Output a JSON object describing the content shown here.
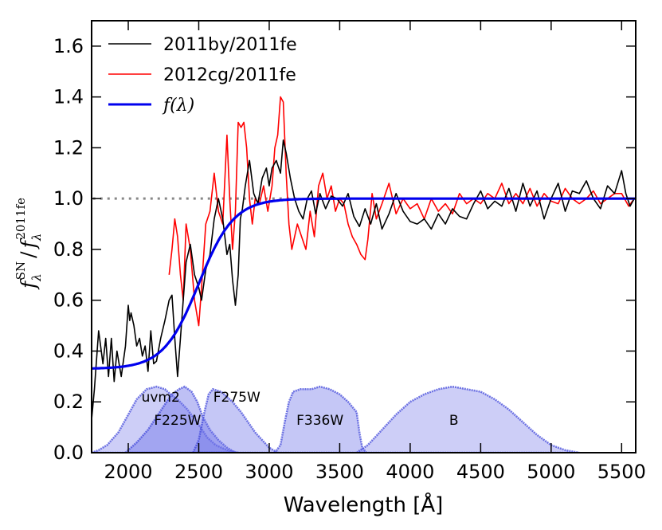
{
  "chart_data": {
    "type": "line",
    "xlabel": "Wavelength [Å]",
    "ylabel": "f_λ^SN / f_λ^2011fe",
    "ylabel_parts": {
      "base": "f",
      "sub": "λ",
      "sup1": "SN",
      "slash": "/",
      "sup2": "2011fe"
    },
    "xlim": [
      1740,
      5600
    ],
    "ylim": [
      0.0,
      1.7
    ],
    "xticks": [
      "2000",
      "2500",
      "3000",
      "3500",
      "4000",
      "4500",
      "5000",
      "5500"
    ],
    "xtick_values": [
      2000,
      2500,
      3000,
      3500,
      4000,
      4500,
      5000,
      5500
    ],
    "yticks": [
      "0.0",
      "0.2",
      "0.4",
      "0.6",
      "0.8",
      "1.0",
      "1.2",
      "1.4",
      "1.6"
    ],
    "ytick_values": [
      0.0,
      0.2,
      0.4,
      0.6,
      0.8,
      1.0,
      1.2,
      1.4,
      1.6
    ],
    "reference_line": {
      "y": 1.0,
      "x_range": [
        1750,
        3200
      ],
      "style": "dotted",
      "color": "#888888"
    },
    "legend": {
      "placement": "top-left",
      "entries": [
        {
          "label": "2011by/2011fe",
          "color": "#000000"
        },
        {
          "label": "2012cg/2011fe",
          "color": "#ff0000"
        },
        {
          "label": "f(λ)",
          "color": "#0000ee",
          "math": true
        }
      ]
    },
    "series": [
      {
        "name": "2011by/2011fe",
        "color": "#000000",
        "x": [
          1740,
          1760,
          1790,
          1820,
          1840,
          1860,
          1880,
          1900,
          1920,
          1950,
          1980,
          2000,
          2010,
          2020,
          2040,
          2060,
          2080,
          2100,
          2120,
          2140,
          2160,
          2180,
          2200,
          2230,
          2260,
          2290,
          2310,
          2330,
          2350,
          2370,
          2390,
          2410,
          2440,
          2470,
          2500,
          2520,
          2550,
          2580,
          2610,
          2640,
          2670,
          2700,
          2720,
          2740,
          2760,
          2780,
          2795,
          2810,
          2830,
          2860,
          2890,
          2920,
          2950,
          2980,
          3000,
          3020,
          3050,
          3080,
          3100,
          3120,
          3150,
          3180,
          3210,
          3240,
          3270,
          3300,
          3330,
          3360,
          3400,
          3440,
          3480,
          3520,
          3560,
          3600,
          3640,
          3680,
          3720,
          3760,
          3800,
          3850,
          3900,
          3950,
          4000,
          4050,
          4100,
          4150,
          4200,
          4250,
          4300,
          4350,
          4400,
          4450,
          4500,
          4550,
          4600,
          4650,
          4700,
          4750,
          4800,
          4850,
          4900,
          4950,
          5000,
          5050,
          5100,
          5150,
          5200,
          5250,
          5300,
          5350,
          5400,
          5450,
          5500,
          5530,
          5560,
          5590
        ],
        "y": [
          0.13,
          0.25,
          0.48,
          0.35,
          0.45,
          0.3,
          0.45,
          0.28,
          0.4,
          0.3,
          0.42,
          0.58,
          0.52,
          0.55,
          0.5,
          0.42,
          0.45,
          0.38,
          0.42,
          0.32,
          0.48,
          0.35,
          0.36,
          0.45,
          0.52,
          0.6,
          0.62,
          0.45,
          0.3,
          0.45,
          0.6,
          0.75,
          0.82,
          0.7,
          0.65,
          0.6,
          0.72,
          0.78,
          0.92,
          1.0,
          0.92,
          0.78,
          0.82,
          0.68,
          0.58,
          0.7,
          0.92,
          0.96,
          1.05,
          1.15,
          1.02,
          0.98,
          1.08,
          1.12,
          1.05,
          1.12,
          1.15,
          1.1,
          1.23,
          1.18,
          1.08,
          1.0,
          0.95,
          0.92,
          1.0,
          1.03,
          0.94,
          1.02,
          0.96,
          1.01,
          1.0,
          0.97,
          1.02,
          0.93,
          0.89,
          0.96,
          0.9,
          0.98,
          0.88,
          0.94,
          1.02,
          0.95,
          0.91,
          0.9,
          0.92,
          0.88,
          0.94,
          0.9,
          0.96,
          0.93,
          0.92,
          0.98,
          1.03,
          0.96,
          0.99,
          0.97,
          1.04,
          0.95,
          1.06,
          0.97,
          1.03,
          0.92,
          1.0,
          1.06,
          0.95,
          1.03,
          1.02,
          1.07,
          1.0,
          0.96,
          1.05,
          1.02,
          1.11,
          1.02,
          0.97,
          1.0
        ]
      },
      {
        "name": "2012cg/2011fe",
        "color": "#ff0000",
        "x": [
          2290,
          2310,
          2330,
          2350,
          2370,
          2390,
          2410,
          2440,
          2470,
          2500,
          2520,
          2550,
          2580,
          2610,
          2640,
          2670,
          2700,
          2720,
          2740,
          2760,
          2780,
          2800,
          2820,
          2840,
          2860,
          2880,
          2900,
          2930,
          2960,
          2990,
          3020,
          3040,
          3060,
          3080,
          3100,
          3120,
          3140,
          3160,
          3180,
          3200,
          3230,
          3260,
          3290,
          3320,
          3350,
          3380,
          3410,
          3440,
          3470,
          3500,
          3530,
          3560,
          3590,
          3620,
          3650,
          3680,
          3700,
          3730,
          3760,
          3800,
          3850,
          3900,
          3950,
          4000,
          4050,
          4100,
          4150,
          4200,
          4250,
          4300,
          4350,
          4400,
          4450,
          4500,
          4550,
          4600,
          4650,
          4700,
          4750,
          4800,
          4850,
          4900,
          4950,
          5000,
          5050,
          5100,
          5150,
          5200,
          5250,
          5300,
          5350,
          5400,
          5450,
          5500,
          5550,
          5590
        ],
        "y": [
          0.7,
          0.8,
          0.92,
          0.85,
          0.7,
          0.6,
          0.9,
          0.8,
          0.6,
          0.5,
          0.65,
          0.9,
          0.95,
          1.1,
          0.95,
          0.9,
          1.25,
          1.0,
          0.8,
          0.95,
          1.3,
          1.28,
          1.3,
          1.2,
          1.0,
          0.9,
          1.0,
          0.98,
          1.05,
          0.95,
          1.05,
          1.2,
          1.25,
          1.4,
          1.38,
          1.1,
          0.9,
          0.8,
          0.85,
          0.9,
          0.85,
          0.8,
          0.95,
          0.85,
          1.05,
          1.1,
          1.0,
          1.05,
          0.95,
          1.0,
          0.98,
          0.9,
          0.85,
          0.82,
          0.78,
          0.76,
          0.84,
          1.02,
          0.92,
          0.98,
          1.06,
          0.94,
          1.0,
          0.96,
          0.98,
          0.92,
          1.0,
          0.95,
          0.98,
          0.94,
          1.02,
          0.98,
          1.0,
          0.98,
          1.02,
          1.0,
          1.06,
          0.98,
          1.02,
          0.98,
          1.04,
          0.97,
          1.02,
          0.99,
          0.98,
          1.04,
          1.0,
          0.98,
          1.0,
          1.03,
          0.98,
          1.0,
          1.02,
          1.02,
          0.97,
          1.0
        ]
      },
      {
        "name": "f(λ)",
        "color": "#0000ee",
        "model": "logistic",
        "y_low": 0.33,
        "y_high": 1.0,
        "center": 2500,
        "scale": 125
      }
    ],
    "filters": [
      {
        "label": "uvm2",
        "label_x": 2230,
        "label_y": 0.2,
        "edges": [
          [
            1740,
            0
          ],
          [
            1790,
            0.01
          ],
          [
            1850,
            0.03
          ],
          [
            1930,
            0.08
          ],
          [
            2000,
            0.15
          ],
          [
            2060,
            0.21
          ],
          [
            2130,
            0.25
          ],
          [
            2200,
            0.26
          ],
          [
            2260,
            0.25
          ],
          [
            2300,
            0.23
          ],
          [
            2350,
            0.21
          ],
          [
            2420,
            0.17
          ],
          [
            2500,
            0.11
          ],
          [
            2560,
            0.06
          ],
          [
            2620,
            0.03
          ],
          [
            2700,
            0.01
          ],
          [
            2780,
            0
          ]
        ],
        "opacity": 0.35
      },
      {
        "label": "F225W",
        "label_x": 2350,
        "label_y": 0.11,
        "edges": [
          [
            1980,
            0
          ],
          [
            2060,
            0.04
          ],
          [
            2140,
            0.09
          ],
          [
            2200,
            0.14
          ],
          [
            2260,
            0.19
          ],
          [
            2310,
            0.23
          ],
          [
            2360,
            0.25
          ],
          [
            2400,
            0.26
          ],
          [
            2450,
            0.24
          ],
          [
            2490,
            0.2
          ],
          [
            2530,
            0.14
          ],
          [
            2580,
            0.09
          ],
          [
            2640,
            0.05
          ],
          [
            2700,
            0.02
          ],
          [
            2760,
            0
          ]
        ],
        "opacity": 0.45
      },
      {
        "label": "F275W",
        "label_x": 2770,
        "label_y": 0.2,
        "edges": [
          [
            2460,
            0
          ],
          [
            2500,
            0.05
          ],
          [
            2540,
            0.16
          ],
          [
            2570,
            0.23
          ],
          [
            2600,
            0.25
          ],
          [
            2660,
            0.24
          ],
          [
            2740,
            0.2
          ],
          [
            2800,
            0.16
          ],
          [
            2850,
            0.12
          ],
          [
            2900,
            0.08
          ],
          [
            2950,
            0.05
          ],
          [
            3000,
            0.02
          ],
          [
            3060,
            0
          ]
        ],
        "opacity": 0.4
      },
      {
        "label": "F336W",
        "label_x": 3360,
        "label_y": 0.11,
        "edges": [
          [
            3040,
            0
          ],
          [
            3080,
            0.03
          ],
          [
            3110,
            0.12
          ],
          [
            3140,
            0.2
          ],
          [
            3170,
            0.24
          ],
          [
            3220,
            0.25
          ],
          [
            3300,
            0.25
          ],
          [
            3360,
            0.26
          ],
          [
            3430,
            0.25
          ],
          [
            3500,
            0.23
          ],
          [
            3560,
            0.2
          ],
          [
            3620,
            0.16
          ],
          [
            3640,
            0.08
          ],
          [
            3660,
            0.02
          ],
          [
            3690,
            0
          ]
        ],
        "opacity": 0.4
      },
      {
        "label": "B",
        "label_x": 4310,
        "label_y": 0.11,
        "edges": [
          [
            3620,
            0
          ],
          [
            3700,
            0.03
          ],
          [
            3800,
            0.09
          ],
          [
            3900,
            0.15
          ],
          [
            4000,
            0.2
          ],
          [
            4100,
            0.23
          ],
          [
            4200,
            0.25
          ],
          [
            4300,
            0.26
          ],
          [
            4400,
            0.25
          ],
          [
            4500,
            0.24
          ],
          [
            4600,
            0.21
          ],
          [
            4700,
            0.17
          ],
          [
            4800,
            0.12
          ],
          [
            4900,
            0.07
          ],
          [
            5000,
            0.03
          ],
          [
            5100,
            0.01
          ],
          [
            5200,
            0
          ]
        ],
        "opacity": 0.35
      }
    ]
  }
}
